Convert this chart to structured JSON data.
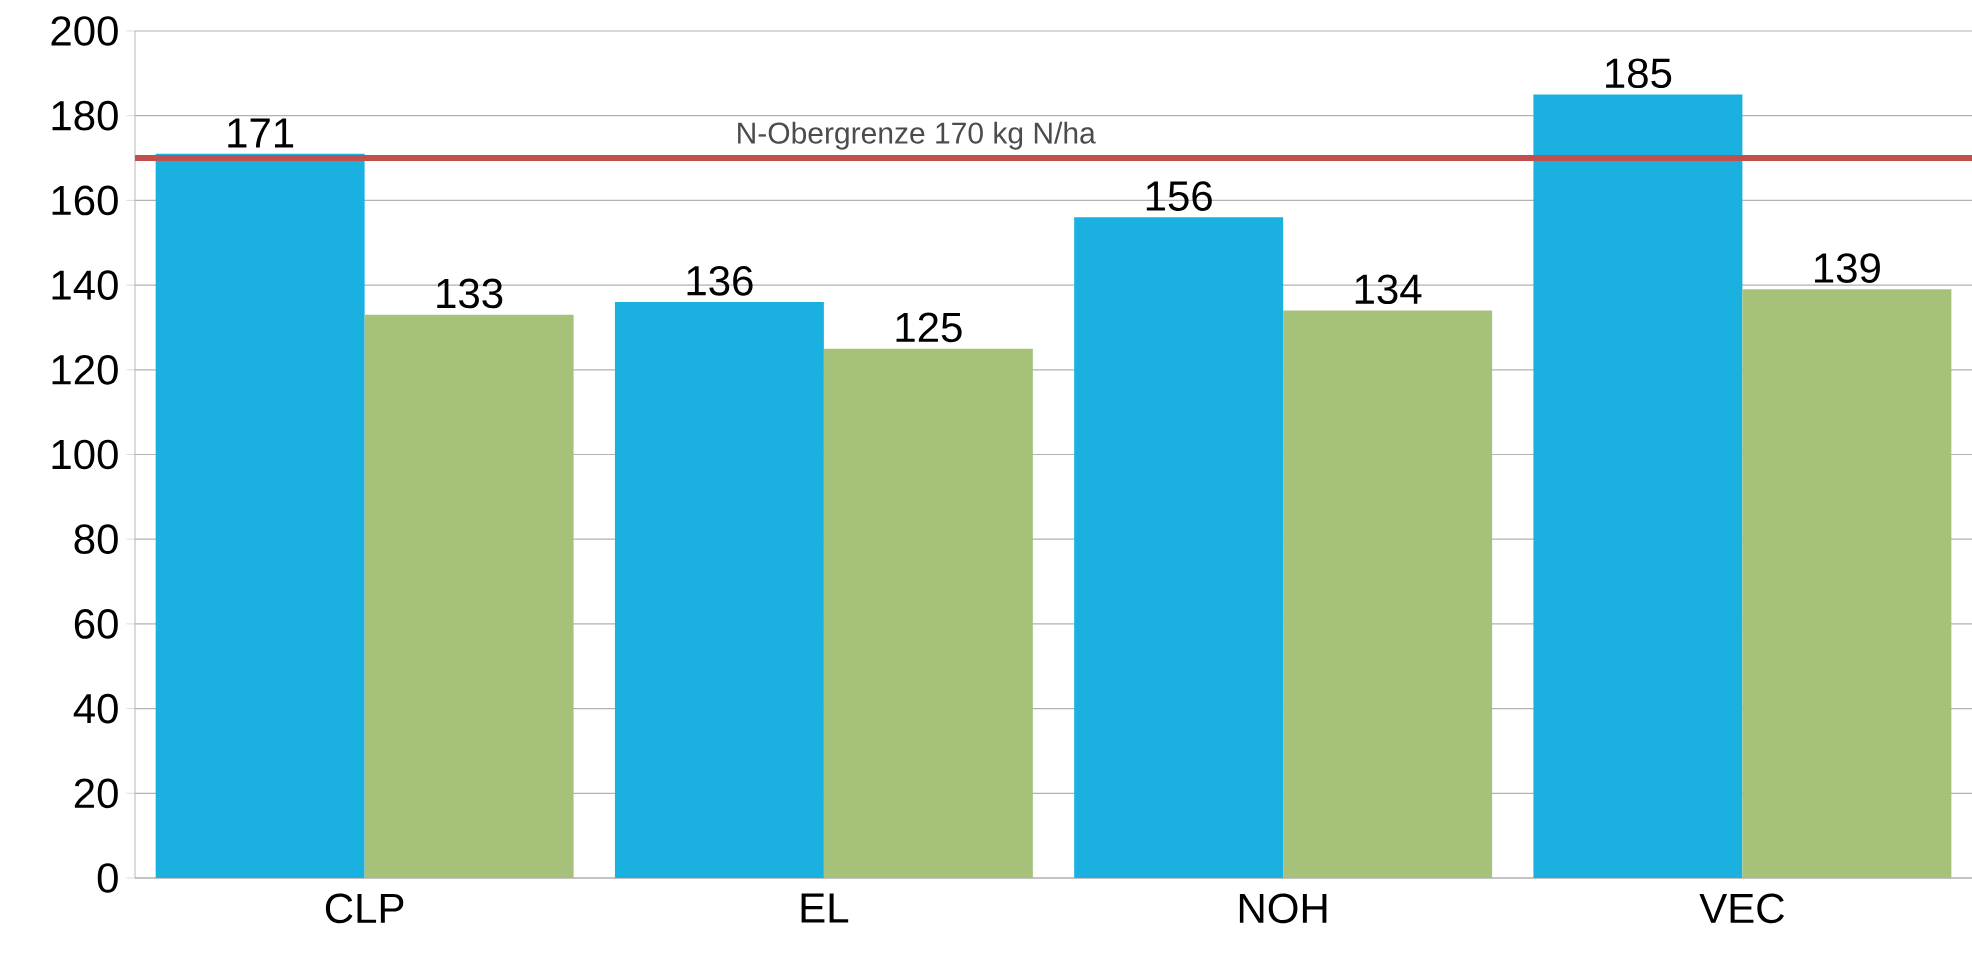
{
  "chart_data": {
    "type": "bar",
    "categories": [
      "CLP",
      "EL",
      "NOH",
      "VEC"
    ],
    "series": [
      {
        "color": "#1ab0e0",
        "values": [
          171,
          136,
          156,
          185
        ]
      },
      {
        "color": "#a6c27a",
        "values": [
          133,
          125,
          134,
          139
        ]
      }
    ],
    "ylim": [
      0,
      200
    ],
    "yticks": [
      0,
      20,
      40,
      60,
      80,
      100,
      120,
      140,
      160,
      180,
      200
    ],
    "grid": "y",
    "data_labels": true,
    "ref_lines": [
      {
        "axis": "y",
        "value": 170,
        "label": "N-Obergrenze 170 kg N/ha",
        "color": "#c0504d"
      }
    ]
  }
}
